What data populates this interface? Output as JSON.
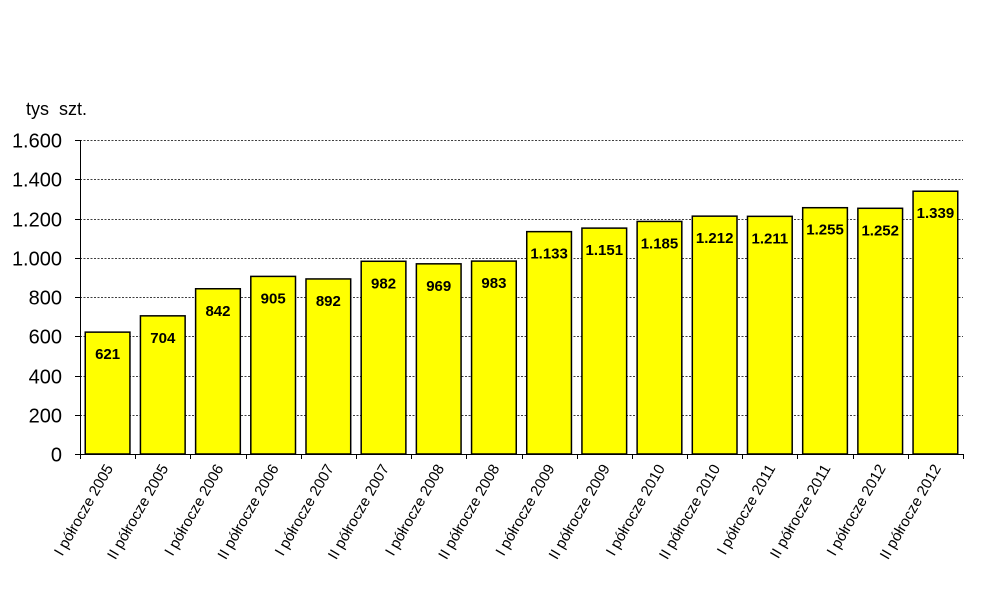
{
  "chart_data": {
    "type": "bar",
    "unit_label": "tys  szt.",
    "categories": [
      "I półrocze 2005",
      "II półrocze 2005",
      "I półrocze 2006",
      "II półrocze 2006",
      "I półrocze 2007",
      "II półrocze 2007",
      "I półrocze 2008",
      "II półrocze 2008",
      "I półrocze 2009",
      "II półrocze 2009",
      "I półrocze 2010",
      "II półrocze 2010",
      "I półrocze 2011",
      "II półrocze 2011",
      "I półrocze 2012",
      "II półrocze 2012"
    ],
    "values": [
      621,
      704,
      842,
      905,
      892,
      982,
      969,
      983,
      1133,
      1151,
      1185,
      1212,
      1211,
      1255,
      1252,
      1339
    ],
    "value_labels": [
      "621",
      "704",
      "842",
      "905",
      "892",
      "982",
      "969",
      "983",
      "1.133",
      "1.151",
      "1.185",
      "1.212",
      "1.211",
      "1.255",
      "1.252",
      "1.339"
    ],
    "ylim": [
      0,
      1600
    ],
    "yticks": [
      0,
      200,
      400,
      600,
      800,
      1000,
      1200,
      1400,
      1600
    ],
    "ytick_labels": [
      "0",
      "200",
      "400",
      "600",
      "800",
      "1.000",
      "1.200",
      "1.400",
      "1.600"
    ],
    "grid": true,
    "bar_color": "#ffff00",
    "bar_edge_color": "#000000",
    "grid_color": "#000000"
  }
}
